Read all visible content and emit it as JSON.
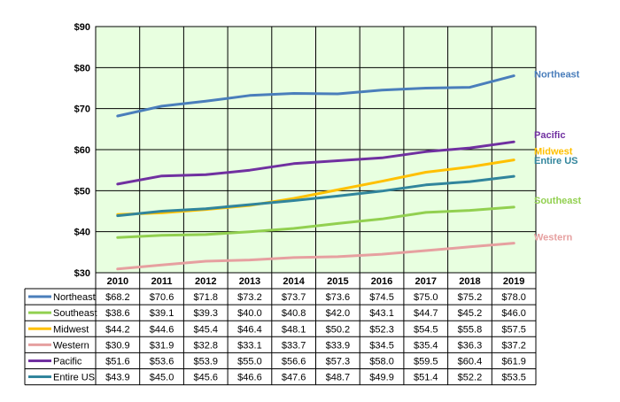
{
  "chart_data": {
    "type": "line",
    "title": "",
    "xlabel": "",
    "ylabel": "",
    "x": [
      "2010",
      "2011",
      "2012",
      "2013",
      "2014",
      "2015",
      "2016",
      "2017",
      "2018",
      "2019"
    ],
    "ylim": [
      30,
      90
    ],
    "yticks": [
      "$30",
      "$40",
      "$50",
      "$60",
      "$70",
      "$80",
      "$90"
    ],
    "grid": true,
    "legend": "data-table",
    "series": [
      {
        "name": "Northeast",
        "color": "#4a7ebb",
        "values": [
          68.2,
          70.6,
          71.8,
          73.2,
          73.7,
          73.6,
          74.5,
          75.0,
          75.2,
          78.0
        ],
        "labels": [
          "$68.2",
          "$70.6",
          "$71.8",
          "$73.2",
          "$73.7",
          "$73.6",
          "$74.5",
          "$75.0",
          "$75.2",
          "$78.0"
        ]
      },
      {
        "name": "Southeast",
        "color": "#92d050",
        "values": [
          38.6,
          39.1,
          39.3,
          40.0,
          40.8,
          42.0,
          43.1,
          44.7,
          45.2,
          46.0
        ],
        "labels": [
          "$38.6",
          "$39.1",
          "$39.3",
          "$40.0",
          "$40.8",
          "$42.0",
          "$43.1",
          "$44.7",
          "$45.2",
          "$46.0"
        ]
      },
      {
        "name": "Midwest",
        "color": "#ffc000",
        "values": [
          44.2,
          44.6,
          45.4,
          46.4,
          48.1,
          50.2,
          52.3,
          54.5,
          55.8,
          57.5
        ],
        "labels": [
          "$44.2",
          "$44.6",
          "$45.4",
          "$46.4",
          "$48.1",
          "$50.2",
          "$52.3",
          "$54.5",
          "$55.8",
          "$57.5"
        ]
      },
      {
        "name": "Western",
        "color": "#e6a0a0",
        "values": [
          30.9,
          31.9,
          32.8,
          33.1,
          33.7,
          33.9,
          34.5,
          35.4,
          36.3,
          37.2
        ],
        "labels": [
          "$30.9",
          "$31.9",
          "$32.8",
          "$33.1",
          "$33.7",
          "$33.9",
          "$34.5",
          "$35.4",
          "$36.3",
          "$37.2"
        ]
      },
      {
        "name": "Pacific",
        "color": "#7030a0",
        "values": [
          51.6,
          53.6,
          53.9,
          55.0,
          56.6,
          57.3,
          58.0,
          59.5,
          60.4,
          61.9
        ],
        "labels": [
          "$51.6",
          "$53.6",
          "$53.9",
          "$55.0",
          "$56.6",
          "$57.3",
          "$58.0",
          "$59.5",
          "$60.4",
          "$61.9"
        ]
      },
      {
        "name": "Entire US",
        "color": "#31859c",
        "values": [
          43.9,
          45.0,
          45.6,
          46.6,
          47.6,
          48.7,
          49.9,
          51.4,
          52.2,
          53.5
        ],
        "labels": [
          "$43.9",
          "$45.0",
          "$45.6",
          "$46.6",
          "$47.6",
          "$48.7",
          "$49.9",
          "$51.4",
          "$52.2",
          "$53.5"
        ]
      }
    ],
    "end_labels": [
      {
        "series": "Northeast",
        "text": "Northeast"
      },
      {
        "series": "Pacific",
        "text": "Pacific"
      },
      {
        "series": "Midwest",
        "text": "Midwest"
      },
      {
        "series": "Entire US",
        "text": "Entire US"
      },
      {
        "series": "Southeast",
        "text": "Southeast"
      },
      {
        "series": "Western",
        "text": "Western"
      }
    ],
    "plot_background": "#e8ffe0"
  }
}
